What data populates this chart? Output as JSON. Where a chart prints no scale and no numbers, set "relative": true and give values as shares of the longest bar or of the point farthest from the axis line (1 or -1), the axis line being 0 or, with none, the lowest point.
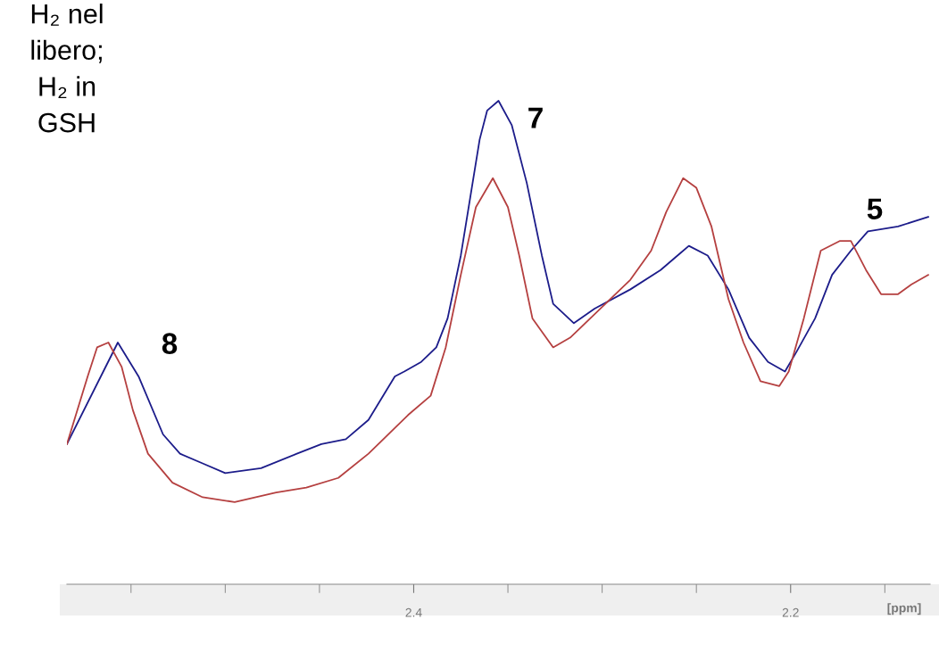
{
  "chart_data": {
    "type": "line",
    "relative": true,
    "xlabel": "[ppm]",
    "xlim": [
      2.584,
      2.126
    ],
    "xticks": [
      {
        "value": 2.55,
        "label": null
      },
      {
        "value": 2.5,
        "label": null
      },
      {
        "value": 2.45,
        "label": null
      },
      2.4,
      {
        "value": 2.35,
        "label": null
      },
      {
        "value": 2.3,
        "label": null
      },
      {
        "value": 2.25,
        "label": null
      },
      2.2,
      {
        "value": 2.15,
        "label": null
      }
    ],
    "grid": false,
    "legend": false,
    "marker": "none",
    "line_style": "solid",
    "annotations": [
      "H₂ nel\nlibero;\nH₂ in\nGSH",
      "8",
      "7",
      "5"
    ],
    "series": [
      {
        "color": "#1c1c8a",
        "x": [
          2.584,
          2.557,
          2.546,
          2.533,
          2.524,
          2.512,
          2.5,
          2.481,
          2.462,
          2.449,
          2.436,
          2.424,
          2.41,
          2.405,
          2.396,
          2.388,
          2.382,
          2.375,
          2.37,
          2.365,
          2.361,
          2.355,
          2.348,
          2.34,
          2.332,
          2.326,
          2.315,
          2.304,
          2.285,
          2.269,
          2.254,
          2.244,
          2.233,
          2.222,
          2.212,
          2.203,
          2.197,
          2.187,
          2.178,
          2.168,
          2.159,
          2.143,
          2.127
        ],
        "values": [
          0.29,
          0.5,
          0.43,
          0.31,
          0.27,
          0.25,
          0.23,
          0.24,
          0.27,
          0.29,
          0.3,
          0.34,
          0.43,
          0.44,
          0.46,
          0.49,
          0.55,
          0.68,
          0.8,
          0.92,
          0.98,
          1.0,
          0.95,
          0.83,
          0.68,
          0.58,
          0.54,
          0.57,
          0.61,
          0.65,
          0.7,
          0.68,
          0.61,
          0.51,
          0.46,
          0.44,
          0.48,
          0.55,
          0.64,
          0.69,
          0.73,
          0.74,
          0.76
        ]
      },
      {
        "color": "#b54040",
        "x": [
          2.584,
          2.573,
          2.568,
          2.562,
          2.555,
          2.549,
          2.541,
          2.528,
          2.512,
          2.495,
          2.473,
          2.457,
          2.44,
          2.424,
          2.403,
          2.391,
          2.383,
          2.375,
          2.367,
          2.358,
          2.35,
          2.344,
          2.337,
          2.326,
          2.317,
          2.301,
          2.285,
          2.274,
          2.266,
          2.257,
          2.25,
          2.242,
          2.233,
          2.225,
          2.216,
          2.206,
          2.201,
          2.193,
          2.184,
          2.174,
          2.168,
          2.16,
          2.152,
          2.143,
          2.136,
          2.127
        ],
        "values": [
          0.29,
          0.43,
          0.49,
          0.5,
          0.45,
          0.36,
          0.27,
          0.21,
          0.18,
          0.17,
          0.19,
          0.2,
          0.22,
          0.27,
          0.35,
          0.39,
          0.49,
          0.64,
          0.78,
          0.84,
          0.78,
          0.68,
          0.55,
          0.49,
          0.51,
          0.57,
          0.63,
          0.69,
          0.77,
          0.84,
          0.82,
          0.74,
          0.59,
          0.5,
          0.42,
          0.41,
          0.44,
          0.55,
          0.69,
          0.71,
          0.71,
          0.65,
          0.6,
          0.6,
          0.62,
          0.64
        ]
      }
    ]
  }
}
